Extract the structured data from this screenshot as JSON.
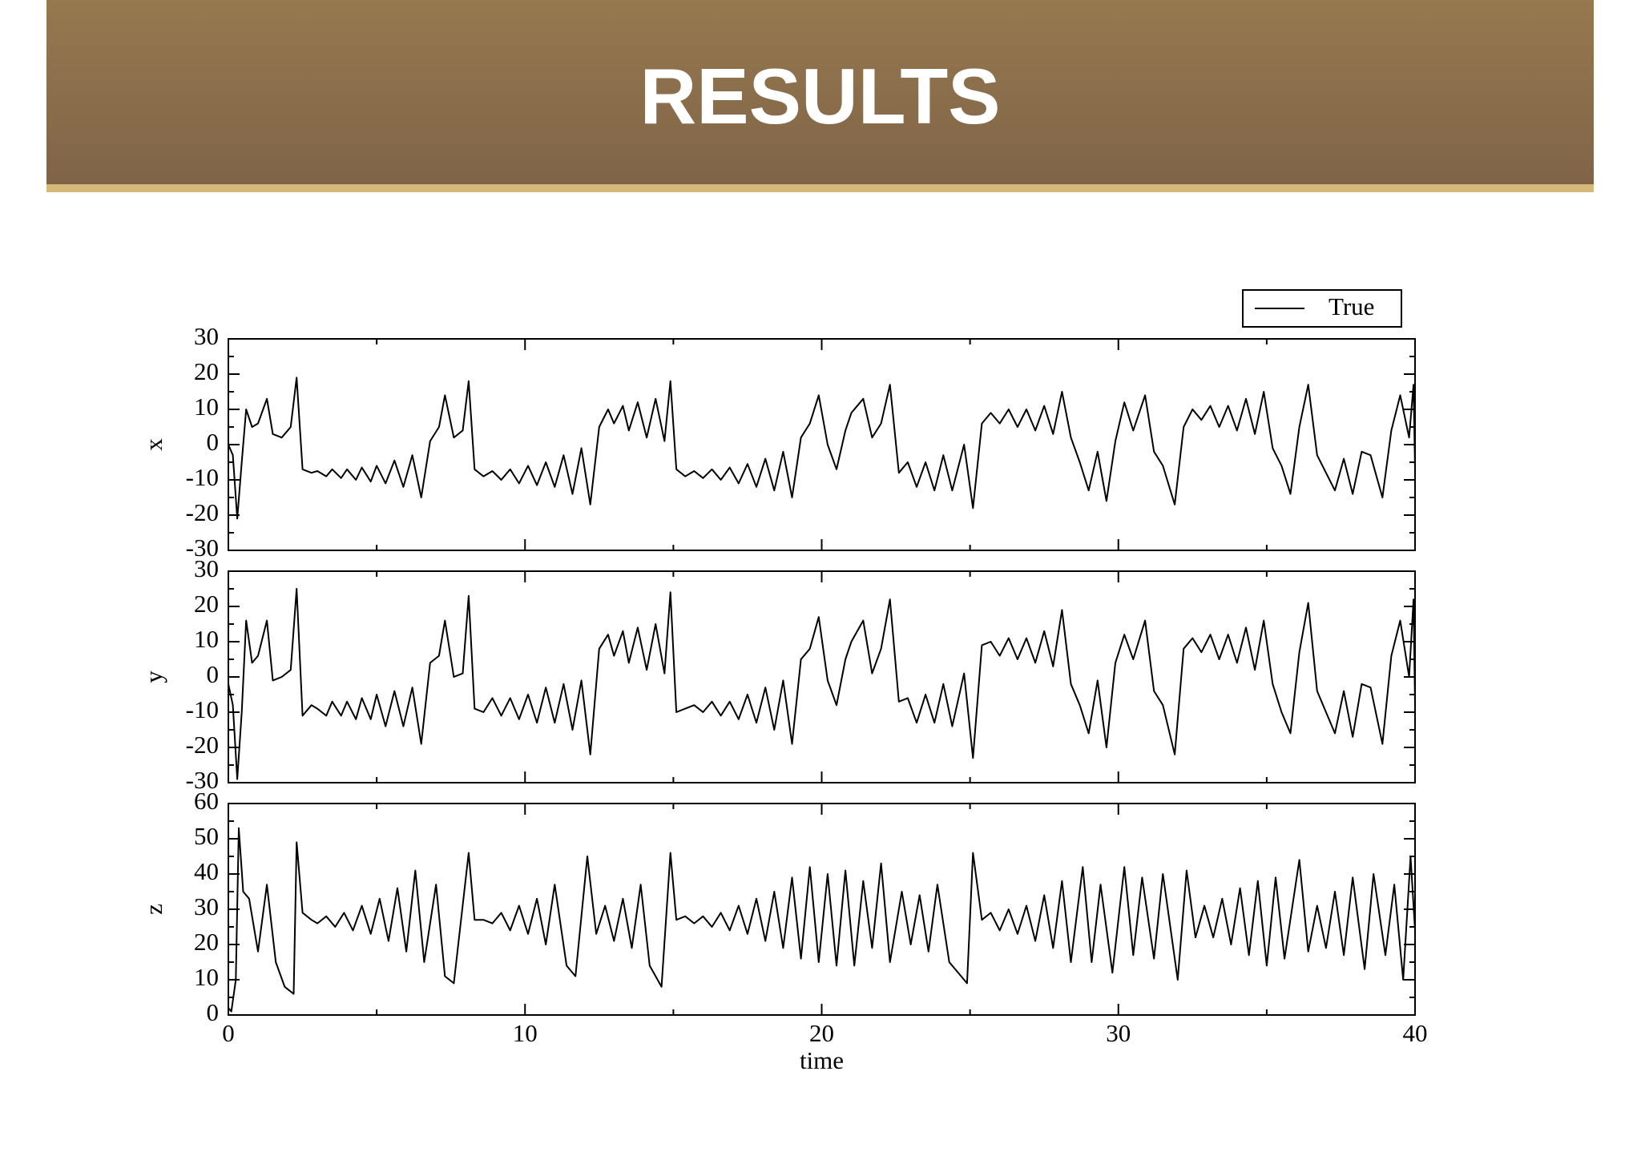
{
  "header": {
    "title": "RESULTS"
  },
  "chart_data": [
    {
      "type": "line",
      "ylabel": "x",
      "xlim": [
        0,
        40
      ],
      "ylim": [
        -30,
        30
      ],
      "yticks": [
        -30,
        -20,
        -10,
        0,
        10,
        20,
        30
      ],
      "legend": "upper right",
      "x": [
        0,
        0.15,
        0.3,
        0.45,
        0.6,
        0.8,
        1.0,
        1.3,
        1.5,
        1.8,
        2.1,
        2.3,
        2.5,
        2.8,
        3.0,
        3.3,
        3.5,
        3.8,
        4.0,
        4.3,
        4.5,
        4.8,
        5.0,
        5.3,
        5.6,
        5.9,
        6.2,
        6.5,
        6.8,
        7.1,
        7.3,
        7.6,
        7.9,
        8.1,
        8.3,
        8.6,
        8.9,
        9.2,
        9.5,
        9.8,
        10.1,
        10.4,
        10.7,
        11.0,
        11.3,
        11.6,
        11.9,
        12.2,
        12.5,
        12.8,
        13.0,
        13.3,
        13.5,
        13.8,
        14.1,
        14.4,
        14.7,
        14.9,
        15.1,
        15.4,
        15.7,
        16.0,
        16.3,
        16.6,
        16.9,
        17.2,
        17.5,
        17.8,
        18.1,
        18.4,
        18.7,
        19.0,
        19.3,
        19.6,
        19.9,
        20.2,
        20.5,
        20.8,
        21.0,
        21.4,
        21.7,
        22.0,
        22.3,
        22.6,
        22.9,
        23.2,
        23.5,
        23.8,
        24.1,
        24.4,
        24.8,
        25.1,
        25.4,
        25.7,
        26.0,
        26.3,
        26.6,
        26.9,
        27.2,
        27.5,
        27.8,
        28.1,
        28.4,
        28.7,
        29.0,
        29.3,
        29.6,
        29.9,
        30.2,
        30.5,
        30.9,
        31.2,
        31.5,
        31.9,
        32.2,
        32.5,
        32.8,
        33.1,
        33.4,
        33.7,
        34.0,
        34.3,
        34.6,
        34.9,
        35.2,
        35.5,
        35.8,
        36.1,
        36.4,
        36.7,
        37.0,
        37.3,
        37.6,
        37.9,
        38.2,
        38.5,
        38.9,
        39.2,
        39.5,
        39.8,
        39.95,
        40
      ],
      "series": [
        {
          "name": "True",
          "color": "#000000",
          "values": [
            0,
            -3,
            -21,
            -5,
            10,
            5,
            6,
            13,
            3,
            2,
            5,
            19,
            -7,
            -8,
            -7.5,
            -9,
            -7,
            -9.5,
            -7,
            -10,
            -6.5,
            -10.5,
            -6,
            -11,
            -4.5,
            -12,
            -3,
            -15,
            1,
            5,
            14,
            2,
            4,
            18,
            -7,
            -9,
            -7.5,
            -10,
            -7,
            -11,
            -6,
            -11.5,
            -5,
            -12,
            -3,
            -14,
            -1,
            -17,
            5,
            10,
            6,
            11,
            4,
            12,
            2,
            13,
            1,
            18,
            -7,
            -9,
            -7.5,
            -9.5,
            -7,
            -10,
            -6.5,
            -11,
            -5.5,
            -12,
            -4,
            -13,
            -2,
            -15,
            2,
            6,
            14,
            0,
            -7,
            4,
            9,
            13,
            2,
            6,
            17,
            -8,
            -5,
            -12,
            -5,
            -13,
            -3,
            -13,
            0,
            -18,
            6,
            9,
            6,
            10,
            5,
            10,
            4,
            11,
            3,
            15,
            2,
            -5,
            -13,
            -2,
            -16,
            1,
            12,
            4,
            14,
            -2,
            -6,
            -17,
            5,
            10,
            7,
            11,
            5,
            11,
            4,
            13,
            3,
            15,
            -1,
            -6,
            -14,
            5,
            17,
            -3,
            -8,
            -13,
            -4,
            -14,
            -2,
            -3,
            -15,
            4,
            14,
            2,
            17,
            -7
          ]
        }
      ]
    },
    {
      "type": "line",
      "ylabel": "y",
      "xlim": [
        0,
        40
      ],
      "ylim": [
        -30,
        30
      ],
      "yticks": [
        -30,
        -20,
        -10,
        0,
        10,
        20,
        30
      ],
      "color": "#000000",
      "x": [
        0,
        0.15,
        0.3,
        0.45,
        0.6,
        0.8,
        1.0,
        1.3,
        1.5,
        1.8,
        2.1,
        2.3,
        2.5,
        2.8,
        3.0,
        3.3,
        3.5,
        3.8,
        4.0,
        4.3,
        4.5,
        4.8,
        5.0,
        5.3,
        5.6,
        5.9,
        6.2,
        6.5,
        6.8,
        7.1,
        7.3,
        7.6,
        7.9,
        8.1,
        8.3,
        8.6,
        8.9,
        9.2,
        9.5,
        9.8,
        10.1,
        10.4,
        10.7,
        11.0,
        11.3,
        11.6,
        11.9,
        12.2,
        12.5,
        12.8,
        13.0,
        13.3,
        13.5,
        13.8,
        14.1,
        14.4,
        14.7,
        14.9,
        15.1,
        15.4,
        15.7,
        16.0,
        16.3,
        16.6,
        16.9,
        17.2,
        17.5,
        17.8,
        18.1,
        18.4,
        18.7,
        19.0,
        19.3,
        19.6,
        19.9,
        20.2,
        20.5,
        20.8,
        21.0,
        21.4,
        21.7,
        22.0,
        22.3,
        22.6,
        22.9,
        23.2,
        23.5,
        23.8,
        24.1,
        24.4,
        24.8,
        25.1,
        25.4,
        25.7,
        26.0,
        26.3,
        26.6,
        26.9,
        27.2,
        27.5,
        27.8,
        28.1,
        28.4,
        28.7,
        29.0,
        29.3,
        29.6,
        29.9,
        30.2,
        30.5,
        30.9,
        31.2,
        31.5,
        31.9,
        32.2,
        32.5,
        32.8,
        33.1,
        33.4,
        33.7,
        34.0,
        34.3,
        34.6,
        34.9,
        35.2,
        35.5,
        35.8,
        36.1,
        36.4,
        36.7,
        37.0,
        37.3,
        37.6,
        37.9,
        38.2,
        38.5,
        38.9,
        39.2,
        39.5,
        39.8,
        39.95,
        40
      ],
      "values": [
        -2,
        -8,
        -29,
        -10,
        16,
        4,
        6,
        16,
        -1,
        0,
        2,
        25,
        -11,
        -8,
        -9,
        -11,
        -7,
        -11,
        -7,
        -12,
        -6,
        -12,
        -5,
        -14,
        -4,
        -14,
        -3,
        -19,
        4,
        6,
        16,
        0,
        1,
        23,
        -9,
        -10,
        -6,
        -11,
        -6,
        -12,
        -5,
        -13,
        -3,
        -13,
        -2,
        -15,
        -1,
        -22,
        8,
        12,
        6,
        13,
        4,
        14,
        2,
        15,
        1,
        24,
        -10,
        -9,
        -8,
        -10,
        -7,
        -11,
        -7,
        -12,
        -5,
        -13,
        -3,
        -15,
        -1,
        -19,
        5,
        8,
        17,
        -1,
        -8,
        5,
        10,
        16,
        1,
        8,
        22,
        -7,
        -6,
        -13,
        -5,
        -13,
        -2,
        -14,
        1,
        -23,
        9,
        10,
        6,
        11,
        5,
        11,
        4,
        13,
        3,
        19,
        -2,
        -8,
        -16,
        -1,
        -20,
        4,
        12,
        5,
        16,
        -4,
        -8,
        -22,
        8,
        11,
        7,
        12,
        5,
        12,
        4,
        14,
        2,
        16,
        -2,
        -10,
        -16,
        7,
        21,
        -4,
        -10,
        -16,
        -4,
        -17,
        -2,
        -3,
        -19,
        6,
        16,
        0,
        22,
        -8
      ]
    },
    {
      "type": "line",
      "ylabel": "z",
      "xlabel": "time",
      "xlim": [
        0,
        40
      ],
      "xticks": [
        0,
        10,
        20,
        30,
        40
      ],
      "ylim": [
        0,
        60
      ],
      "yticks": [
        0,
        10,
        20,
        30,
        40,
        50,
        60
      ],
      "color": "#000000",
      "x": [
        0,
        0.1,
        0.25,
        0.35,
        0.5,
        0.7,
        1.0,
        1.3,
        1.6,
        1.9,
        2.2,
        2.3,
        2.5,
        2.8,
        3.0,
        3.3,
        3.6,
        3.9,
        4.2,
        4.5,
        4.8,
        5.1,
        5.4,
        5.7,
        6.0,
        6.3,
        6.6,
        7.0,
        7.3,
        7.6,
        8.1,
        8.3,
        8.6,
        8.9,
        9.2,
        9.5,
        9.8,
        10.1,
        10.4,
        10.7,
        11.0,
        11.4,
        11.7,
        12.1,
        12.4,
        12.7,
        13.0,
        13.3,
        13.6,
        13.9,
        14.2,
        14.6,
        14.9,
        15.1,
        15.4,
        15.7,
        16.0,
        16.3,
        16.6,
        16.9,
        17.2,
        17.5,
        17.8,
        18.1,
        18.4,
        18.7,
        19.0,
        19.3,
        19.6,
        19.9,
        20.2,
        20.5,
        20.8,
        21.1,
        21.4,
        21.7,
        22.0,
        22.3,
        22.7,
        23.0,
        23.3,
        23.6,
        23.9,
        24.3,
        24.9,
        25.1,
        25.4,
        25.7,
        26.0,
        26.3,
        26.6,
        26.9,
        27.2,
        27.5,
        27.8,
        28.1,
        28.4,
        28.8,
        29.1,
        29.4,
        29.8,
        30.2,
        30.5,
        30.8,
        31.2,
        31.5,
        32.0,
        32.3,
        32.6,
        32.9,
        33.2,
        33.5,
        33.8,
        34.1,
        34.4,
        34.7,
        35.0,
        35.3,
        35.6,
        36.1,
        36.4,
        36.7,
        37.0,
        37.3,
        37.6,
        37.9,
        38.3,
        38.6,
        39.0,
        39.3,
        39.6,
        39.85,
        40
      ],
      "values": [
        2,
        1,
        10,
        53,
        35,
        33,
        18,
        37,
        15,
        8,
        6,
        49,
        29,
        27,
        26,
        28,
        25,
        29,
        24,
        31,
        23,
        33,
        21,
        36,
        18,
        41,
        15,
        37,
        11,
        9,
        46,
        27,
        27,
        26,
        29,
        24,
        31,
        23,
        33,
        20,
        37,
        14,
        11,
        45,
        23,
        31,
        21,
        33,
        19,
        37,
        14,
        8,
        46,
        27,
        28,
        26,
        28,
        25,
        29,
        24,
        31,
        23,
        33,
        21,
        35,
        19,
        39,
        16,
        42,
        15,
        40,
        14,
        41,
        14,
        38,
        19,
        43,
        15,
        35,
        20,
        34,
        18,
        37,
        15,
        9,
        46,
        27,
        29,
        24,
        30,
        23,
        31,
        21,
        34,
        19,
        38,
        15,
        42,
        15,
        37,
        12,
        42,
        17,
        39,
        16,
        40,
        10,
        41,
        22,
        31,
        22,
        33,
        20,
        36,
        17,
        38,
        14,
        39,
        16,
        44,
        18,
        31,
        19,
        35,
        17,
        39,
        13,
        40,
        17,
        37,
        10,
        45,
        24
      ]
    }
  ]
}
